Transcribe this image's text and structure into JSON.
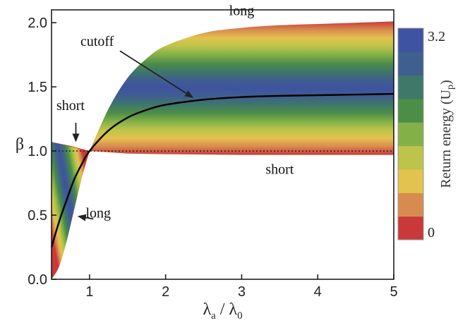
{
  "chart_data": {
    "type": "heatmap",
    "xlabel_main": "λ",
    "xlabel_sub_a": "a",
    "xlabel_div": " / λ",
    "xlabel_sub_0": "0",
    "ylabel": "β",
    "xlim": [
      0.5,
      5
    ],
    "ylim": [
      0.0,
      2.1
    ],
    "x_ticks": [
      1,
      2,
      3,
      4,
      5
    ],
    "x_tick_labels": [
      "1",
      "2",
      "3",
      "4",
      "5"
    ],
    "y_ticks": [
      0.0,
      0.5,
      1.0,
      1.5,
      2.0
    ],
    "y_tick_labels": [
      "0.0",
      "0.5",
      "1.0",
      "1.5",
      "2.0"
    ],
    "reference_line": {
      "y": 1.0,
      "style": "dotted"
    },
    "colorbar": {
      "title": "Return energy (U",
      "title_sub": "p",
      "title_close": ")",
      "min": 0,
      "max": 3.2,
      "min_label": "0",
      "max_label": "3.2",
      "colors": [
        "#c9393a",
        "#d88b4f",
        "#e3c24f",
        "#bcc44a",
        "#84b048",
        "#4d8e47",
        "#3f7769",
        "#3f5f8e",
        "#3e53a1"
      ]
    },
    "cutoff_curve": {
      "x": [
        0.5,
        0.6,
        0.7,
        0.8,
        0.9,
        1.0,
        1.25,
        1.5,
        1.75,
        2.0,
        2.5,
        3.0,
        3.5,
        4.0,
        4.5,
        5.0
      ],
      "y": [
        0.25,
        0.45,
        0.62,
        0.78,
        0.9,
        1.0,
        1.16,
        1.26,
        1.32,
        1.36,
        1.4,
        1.42,
        1.43,
        1.435,
        1.44,
        1.445
      ]
    },
    "upper_boundary": {
      "x": [
        1.0,
        1.25,
        1.5,
        1.75,
        2.0,
        2.5,
        3.0,
        3.5,
        4.0,
        4.5,
        5.0
      ],
      "y": [
        1.0,
        1.33,
        1.57,
        1.72,
        1.82,
        1.92,
        1.96,
        1.98,
        1.99,
        2.0,
        2.01
      ]
    },
    "lower_boundary_right": {
      "x": [
        1.0,
        1.5,
        2.0,
        3.0,
        4.0,
        5.0
      ],
      "y": [
        1.0,
        0.98,
        0.975,
        0.97,
        0.97,
        0.97
      ]
    },
    "lower_boundary_left": {
      "x": [
        0.5,
        0.6,
        0.7,
        0.8,
        0.9,
        1.0
      ],
      "y": [
        0.0,
        0.1,
        0.3,
        0.55,
        0.8,
        1.0
      ]
    },
    "upper_boundary_left": {
      "x": [
        0.5,
        0.75,
        1.0
      ],
      "y": [
        1.07,
        1.04,
        1.0
      ]
    },
    "annotations": [
      {
        "text": "long",
        "x": 3.0,
        "y": 2.06
      },
      {
        "text": "cutoff",
        "x": 1.1,
        "y": 1.82
      },
      {
        "text": "short",
        "x": 0.75,
        "y": 1.32
      },
      {
        "text": "short",
        "x": 3.5,
        "y": 0.9
      },
      {
        "text": "long",
        "x": 0.95,
        "y": 0.48
      }
    ]
  }
}
